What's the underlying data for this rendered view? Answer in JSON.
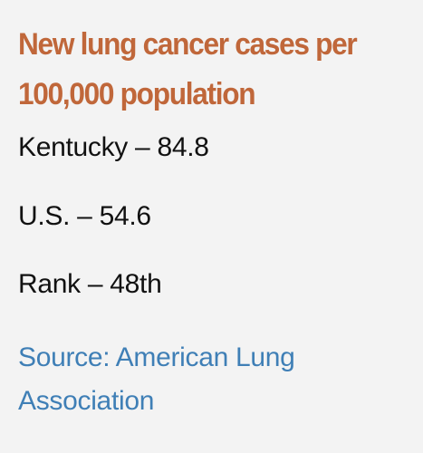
{
  "card": {
    "title": "New lung cancer cases per 100,000 population",
    "stats": [
      "Kentucky – 84.8",
      "U.S. – 54.6",
      "Rank – 48th"
    ],
    "source": "Source: American Lung Association"
  },
  "colors": {
    "title": "#c0673a",
    "text": "#111111",
    "source": "#3f7fb6",
    "background": "#f3f3f3"
  }
}
